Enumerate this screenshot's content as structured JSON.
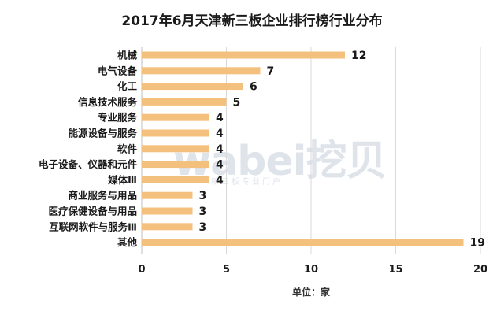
{
  "chart_data": {
    "type": "bar",
    "orientation": "horizontal",
    "title": "2017年6月天津新三板企业排行榜行业分布",
    "categories": [
      "机械",
      "电气设备",
      "化工",
      "信息技术服务",
      "专业服务",
      "能源设备与服务",
      "软件",
      "电子设备、仪器和元件",
      "媒体Ⅲ",
      "商业服务与用品",
      "医疗保健设备与用品",
      "互联网软件与服务Ⅲ",
      "其他"
    ],
    "values": [
      12,
      7,
      6,
      5,
      4,
      4,
      4,
      4,
      4,
      3,
      3,
      3,
      19
    ],
    "xlim": [
      0,
      20
    ],
    "xticks": [
      0,
      5,
      10,
      15,
      20
    ],
    "xlabel": "单位：家",
    "grid": true,
    "bar_color": "#f4c07e"
  },
  "watermark": {
    "main": "wabei挖贝",
    "sub": "新三板专业门户"
  }
}
